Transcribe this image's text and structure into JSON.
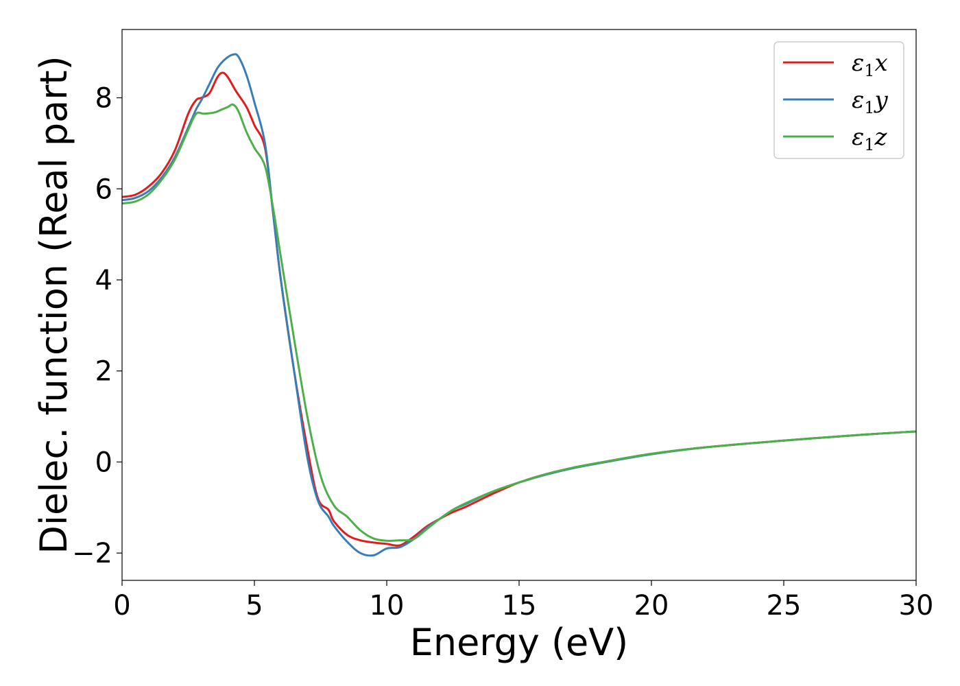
{
  "chart_data": {
    "type": "line",
    "title": "",
    "xlabel": "Energy (eV)",
    "ylabel": "Dielec. function (Real part)",
    "xlim": [
      0,
      30
    ],
    "ylim": [
      -2.6,
      9.5
    ],
    "xticks": [
      0,
      5,
      10,
      15,
      20,
      25,
      30
    ],
    "xtick_labels": [
      "0",
      "5",
      "10",
      "15",
      "20",
      "25",
      "30"
    ],
    "yticks": [
      -2,
      0,
      2,
      4,
      6,
      8
    ],
    "ytick_labels": [
      "−2",
      "0",
      "2",
      "4",
      "6",
      "8"
    ],
    "grid": false,
    "legend_position": "top-right",
    "series": [
      {
        "name": "ε1x",
        "legend_base": "ε",
        "legend_sub": "1",
        "legend_suffix": "x",
        "color": "#e41a1c",
        "x": [
          0,
          0.5,
          1,
          1.5,
          2,
          2.5,
          2.8,
          3.0,
          3.3,
          3.6,
          3.8,
          4.0,
          4.3,
          4.7,
          5.0,
          5.4,
          5.7,
          6.0,
          6.5,
          7.0,
          7.4,
          7.8,
          8.0,
          8.5,
          9.0,
          9.5,
          10.0,
          10.5,
          11.0,
          11.5,
          12.0,
          12.5,
          13.0,
          14.0,
          15.0,
          16.0,
          17.0,
          18.0,
          20.0,
          22.0,
          25.0,
          28.0,
          30.0
        ],
        "y": [
          5.82,
          5.87,
          6.05,
          6.35,
          6.85,
          7.65,
          7.95,
          8.0,
          8.1,
          8.45,
          8.55,
          8.45,
          8.15,
          7.8,
          7.4,
          6.9,
          5.5,
          4.0,
          2.0,
          0.3,
          -0.8,
          -1.05,
          -1.3,
          -1.6,
          -1.72,
          -1.77,
          -1.8,
          -1.83,
          -1.65,
          -1.42,
          -1.25,
          -1.1,
          -0.98,
          -0.7,
          -0.45,
          -0.27,
          -0.13,
          -0.02,
          0.18,
          0.32,
          0.47,
          0.6,
          0.67
        ]
      },
      {
        "name": "ε1y",
        "legend_base": "ε",
        "legend_sub": "1",
        "legend_suffix": "y",
        "color": "#377eb8",
        "x": [
          0,
          0.5,
          1,
          1.5,
          2,
          2.5,
          2.8,
          3.0,
          3.3,
          3.6,
          3.9,
          4.2,
          4.4,
          4.7,
          5.0,
          5.4,
          5.7,
          6.0,
          6.5,
          7.0,
          7.4,
          7.8,
          8.0,
          8.5,
          9.0,
          9.5,
          10.0,
          10.5,
          11.0,
          11.5,
          12.0,
          12.5,
          13.0,
          14.0,
          15.0,
          16.0,
          17.0,
          18.0,
          20.0,
          22.0,
          25.0,
          28.0,
          30.0
        ],
        "y": [
          5.75,
          5.8,
          5.95,
          6.25,
          6.7,
          7.35,
          7.75,
          7.95,
          8.3,
          8.65,
          8.85,
          8.95,
          8.9,
          8.5,
          7.9,
          7.0,
          5.5,
          4.0,
          2.0,
          0.1,
          -0.85,
          -1.2,
          -1.4,
          -1.75,
          -2.0,
          -2.05,
          -1.9,
          -1.87,
          -1.7,
          -1.45,
          -1.25,
          -1.05,
          -0.92,
          -0.65,
          -0.45,
          -0.28,
          -0.14,
          -0.03,
          0.17,
          0.32,
          0.47,
          0.6,
          0.67
        ]
      },
      {
        "name": "ε1z",
        "legend_base": "ε",
        "legend_sub": "1",
        "legend_suffix": "z",
        "color": "#4daf4a",
        "x": [
          0,
          0.5,
          1,
          1.5,
          2,
          2.5,
          2.8,
          3.1,
          3.5,
          3.8,
          4.0,
          4.2,
          4.4,
          4.7,
          5.0,
          5.4,
          5.7,
          6.0,
          6.5,
          7.0,
          7.5,
          8.0,
          8.5,
          9.0,
          9.5,
          10.0,
          10.5,
          11.0,
          11.5,
          12.0,
          12.5,
          13.0,
          14.0,
          15.0,
          16.0,
          17.0,
          18.0,
          20.0,
          22.0,
          25.0,
          28.0,
          30.0
        ],
        "y": [
          5.68,
          5.72,
          5.88,
          6.2,
          6.65,
          7.3,
          7.65,
          7.65,
          7.68,
          7.75,
          7.8,
          7.85,
          7.7,
          7.25,
          6.9,
          6.5,
          5.6,
          4.5,
          2.7,
          1.0,
          -0.3,
          -0.95,
          -1.2,
          -1.5,
          -1.68,
          -1.73,
          -1.72,
          -1.7,
          -1.48,
          -1.25,
          -1.05,
          -0.9,
          -0.65,
          -0.45,
          -0.27,
          -0.13,
          -0.02,
          0.18,
          0.32,
          0.47,
          0.6,
          0.67
        ]
      }
    ]
  }
}
